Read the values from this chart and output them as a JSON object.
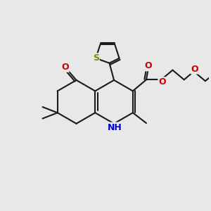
{
  "background_color": "#e8e8e8",
  "bond_color": "#1a1a1a",
  "bond_width": 1.5,
  "atom_colors": {
    "N": "#0000cc",
    "O": "#cc0000",
    "S": "#888800"
  },
  "figsize": [
    3.0,
    3.0
  ],
  "dpi": 100
}
